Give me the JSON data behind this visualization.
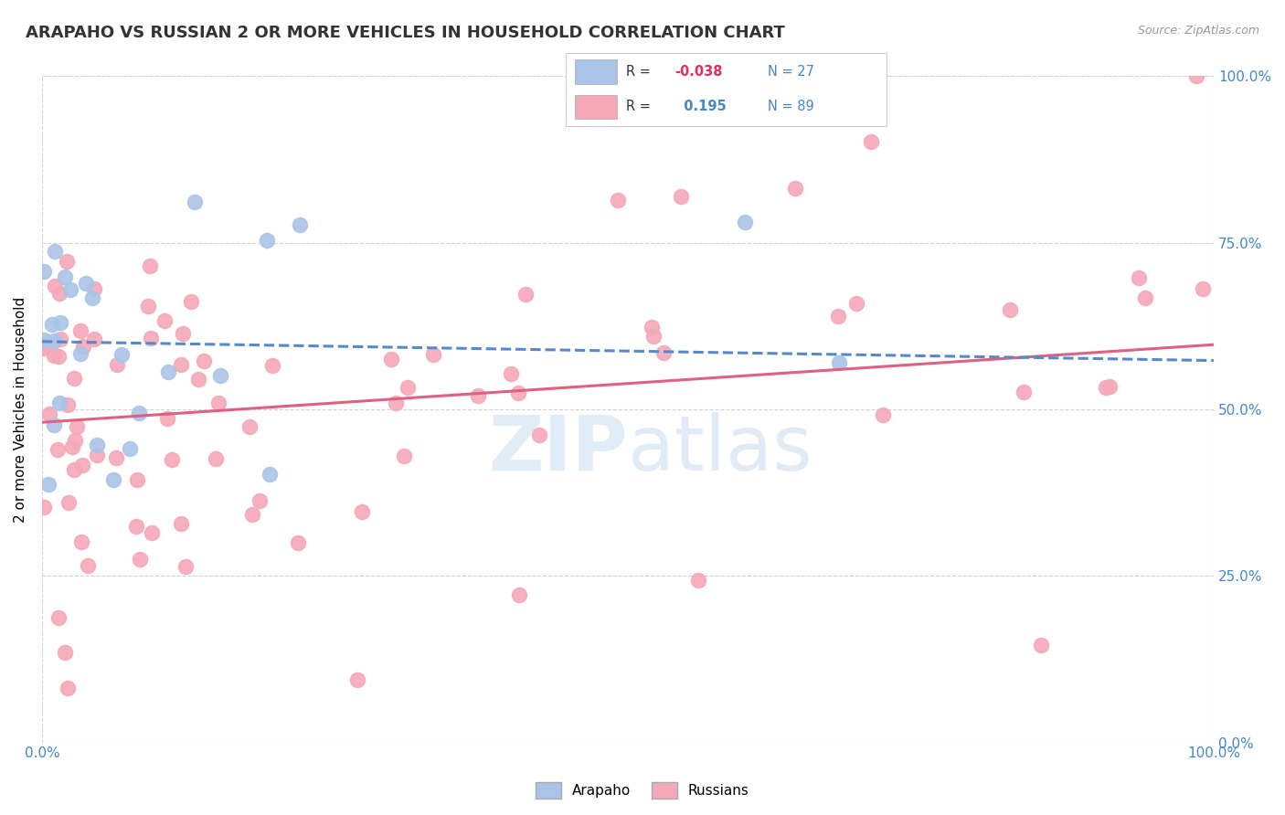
{
  "title": "ARAPAHO VS RUSSIAN 2 OR MORE VEHICLES IN HOUSEHOLD CORRELATION CHART",
  "source": "Source: ZipAtlas.com",
  "ylabel": "2 or more Vehicles in Household",
  "ytick_labels": [
    "0.0%",
    "25.0%",
    "50.0%",
    "75.0%",
    "100.0%"
  ],
  "ytick_positions": [
    0,
    25,
    50,
    75,
    100
  ],
  "watermark": "ZIPatlas",
  "arapaho_color": "#aac4e8",
  "russians_color": "#f5a8b8",
  "arapaho_line_color": "#5588cc",
  "russians_line_color": "#e06080",
  "arapaho_R": "-0.038",
  "arapaho_N": "27",
  "russians_R": "0.195",
  "russians_N": "89",
  "background_color": "#ffffff",
  "grid_color": "#cccccc",
  "title_fontsize": 13,
  "tick_color": "#4488cc",
  "xlim": [
    0,
    100
  ],
  "ylim": [
    0,
    100
  ]
}
